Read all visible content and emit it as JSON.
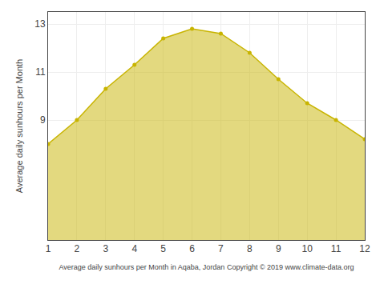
{
  "chart_data": {
    "type": "area",
    "x": [
      1,
      2,
      3,
      4,
      5,
      6,
      7,
      8,
      9,
      10,
      11,
      12
    ],
    "values": [
      8.0,
      9.0,
      10.3,
      11.3,
      12.4,
      12.8,
      12.6,
      11.8,
      10.7,
      9.7,
      9.0,
      8.2
    ],
    "color": "#C8B400",
    "marker": "circle",
    "xlabel": "Average daily sunhours per Month in Aqaba, Jordan Copyright © 2019 www.climate-data.org",
    "ylabel": "Average daily sunhours per Month",
    "xlim": [
      1,
      12
    ],
    "ylim": [
      4,
      13.5
    ],
    "xticks": [
      1,
      2,
      3,
      4,
      5,
      6,
      7,
      8,
      9,
      10,
      11,
      12
    ],
    "yticks": [
      9,
      11,
      13
    ],
    "grid": true
  }
}
